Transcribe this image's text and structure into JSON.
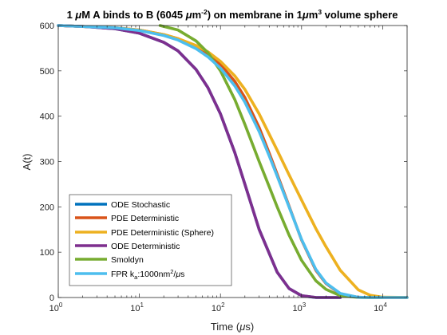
{
  "chart_data": {
    "type": "line",
    "title": "1 μM A binds to B (6045 μm-2) on membrane in 1μm3 volume sphere",
    "title_parts": {
      "p1": "1 ",
      "p2": "μ",
      "p3": "M A binds to B (6045 ",
      "p4": "μ",
      "p5": "m",
      "p6": "-2",
      "p7": ") on membrane in 1",
      "p8": "μ",
      "p9": "m",
      "p10": "3",
      "p11": " volume sphere"
    },
    "xlabel": "Time (μs)",
    "xlabel_parts": {
      "p1": "Time (",
      "p2": "μ",
      "p3": "s)"
    },
    "ylabel": "A(t)",
    "xscale": "log",
    "xlim": [
      1,
      20000
    ],
    "ylim": [
      0,
      600
    ],
    "x_ticks": [
      {
        "value": 1,
        "base": "10",
        "exp": "0"
      },
      {
        "value": 10,
        "base": "10",
        "exp": "1"
      },
      {
        "value": 100,
        "base": "10",
        "exp": "2"
      },
      {
        "value": 1000,
        "base": "10",
        "exp": "3"
      },
      {
        "value": 10000,
        "base": "10",
        "exp": "4"
      }
    ],
    "y_ticks": [
      0,
      100,
      200,
      300,
      400,
      500,
      600
    ],
    "grid": false,
    "legend_position": "bottom-left",
    "series": [
      {
        "name": "ODE Stochastic",
        "color": "#0072BD",
        "x": [
          1,
          2,
          5,
          10,
          20,
          30,
          50,
          70,
          100,
          150,
          200,
          300,
          500,
          700,
          1000,
          1500,
          2000,
          3000
        ],
        "y": [
          600,
          598,
          593,
          583,
          563,
          544,
          503,
          463,
          405,
          320,
          250,
          150,
          56,
          20,
          4,
          0,
          0,
          0
        ]
      },
      {
        "name": "PDE Deterministic",
        "color": "#D95319",
        "x": [
          1,
          2,
          5,
          10,
          20,
          30,
          50,
          70,
          100,
          150,
          200,
          300,
          400,
          500,
          700,
          1000,
          1500,
          2000,
          3000,
          5000,
          7000,
          10000,
          20000
        ],
        "y": [
          600,
          598,
          595,
          590,
          580,
          571,
          553,
          537,
          514,
          477,
          441,
          375,
          318,
          272,
          202,
          127,
          60,
          31,
          8,
          0.5,
          0,
          0,
          0
        ]
      },
      {
        "name": "PDE Deterministic (Sphere)",
        "color": "#EDB120",
        "x": [
          1,
          2,
          5,
          10,
          20,
          30,
          50,
          70,
          100,
          150,
          200,
          300,
          500,
          700,
          1000,
          1500,
          2000,
          3000,
          5000,
          7000,
          10000,
          20000
        ],
        "y": [
          600,
          598,
          595,
          590,
          580,
          571,
          556,
          542,
          521,
          489,
          459,
          405,
          325,
          271,
          215,
          152,
          112,
          60,
          17,
          5,
          0.7,
          0
        ]
      },
      {
        "name": "ODE Deterministic",
        "color": "#7E2F8E",
        "x": [
          1,
          2,
          5,
          10,
          20,
          30,
          50,
          70,
          100,
          150,
          200,
          300,
          500,
          700,
          1000,
          1500,
          2000,
          3000
        ],
        "y": [
          600,
          598,
          593,
          583,
          563,
          544,
          503,
          463,
          405,
          320,
          250,
          150,
          56,
          20,
          4,
          0.2,
          0,
          0
        ]
      },
      {
        "name": "Smoldyn",
        "color": "#77AC30",
        "x": [
          18,
          30,
          50,
          70,
          100,
          150,
          200,
          300,
          400,
          500,
          700,
          1000,
          1500,
          2000,
          3000,
          5000,
          7000,
          10000
        ],
        "y": [
          600,
          590,
          566,
          540,
          500,
          437,
          382,
          300,
          244,
          200,
          138,
          82,
          37,
          18,
          4,
          0.3,
          0,
          0
        ]
      },
      {
        "name": "FPR k_a:1000nm2/μs",
        "color": "#4DBEEE",
        "label_parts": {
          "p1": "FPR k",
          "p2": "a",
          "p3": ":1000nm",
          "p4": "2",
          "p5": "/",
          "p6": "μ",
          "p7": "s"
        },
        "x": [
          1,
          2,
          5,
          10,
          20,
          30,
          50,
          70,
          100,
          150,
          200,
          300,
          400,
          500,
          700,
          1000,
          1500,
          2000,
          3000,
          5000,
          7000,
          10000,
          20000
        ],
        "y": [
          600,
          598,
          595,
          589,
          578,
          568,
          549,
          531,
          506,
          467,
          431,
          366,
          312,
          268,
          200,
          128,
          62,
          32,
          9,
          0.5,
          0,
          0,
          0
        ]
      }
    ]
  }
}
